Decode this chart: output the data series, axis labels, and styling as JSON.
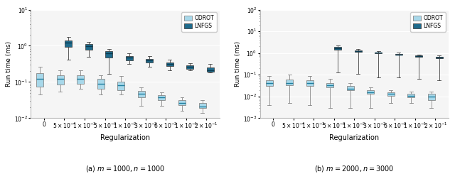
{
  "subplot_titles": [
    "(a) $m = 1000, n = 1000$",
    "(b) $m = 2000, n = 3000$"
  ],
  "xlabel": "Regularization",
  "ylabel": "Run time (ms)",
  "legend_labels": [
    "ODROT",
    "LNFGS"
  ],
  "color_qdrot": "#A8D8EA",
  "color_lbfgs": "#1E6B8C",
  "x_labels": [
    "$0$",
    "$5{\\times}10^{\\text{-}4}$",
    "$1{\\times}10^{\\text{-}3}$",
    "$5{\\times}10^{\\text{-}3}$",
    "$1{\\times}10^{\\text{-}2}$",
    "$3{\\times}10^{\\text{-}2}$",
    "$6{\\times}10^{\\text{-}2}$",
    "$1{\\times}10^{\\text{-}1}$",
    "$2{\\times}10^{\\text{-}1}$"
  ],
  "plot1": {
    "qdrot": {
      "whislo": [
        0.045,
        0.055,
        0.065,
        0.045,
        0.045,
        0.022,
        0.022,
        0.016,
        0.014
      ],
      "q1": [
        0.075,
        0.085,
        0.09,
        0.065,
        0.06,
        0.038,
        0.032,
        0.023,
        0.019
      ],
      "med": [
        0.12,
        0.12,
        0.12,
        0.09,
        0.08,
        0.047,
        0.037,
        0.026,
        0.021
      ],
      "q3": [
        0.175,
        0.155,
        0.155,
        0.12,
        0.1,
        0.058,
        0.043,
        0.032,
        0.026
      ],
      "whishi": [
        0.265,
        0.21,
        0.21,
        0.155,
        0.145,
        0.072,
        0.052,
        0.037,
        0.031
      ],
      "fliers_lo": [
        0.036,
        0.042,
        null,
        null,
        null,
        null,
        null,
        null,
        null
      ],
      "fliers_hi": [
        0.38,
        0.27,
        0.27,
        0.195,
        0.195,
        null,
        null,
        null,
        null
      ]
    },
    "lbfgs": {
      "whislo": [
        null,
        0.42,
        0.5,
        0.17,
        0.32,
        0.26,
        0.21,
        0.21,
        0.18
      ],
      "q1": [
        null,
        0.92,
        0.77,
        0.47,
        0.4,
        0.34,
        0.28,
        0.23,
        0.19
      ],
      "med": [
        null,
        1.2,
        0.96,
        0.62,
        0.47,
        0.39,
        0.31,
        0.26,
        0.21
      ],
      "q3": [
        null,
        1.38,
        1.1,
        0.72,
        0.53,
        0.43,
        0.34,
        0.29,
        0.25
      ],
      "whishi": [
        null,
        1.75,
        1.28,
        0.82,
        0.62,
        0.52,
        0.41,
        0.33,
        0.31
      ],
      "fliers_lo": [
        null,
        null,
        null,
        null,
        null,
        null,
        null,
        null,
        null
      ],
      "fliers_hi": [
        null,
        2.4,
        1.55,
        null,
        null,
        null,
        null,
        null,
        null
      ]
    },
    "ylim": [
      0.01,
      10
    ],
    "yticks": [
      0.01,
      0.1,
      1.0,
      10
    ],
    "ytick_labels": [
      "$10^{-2}$",
      "$10^{-1}$",
      "$10^{0}$",
      "$10^{1}$"
    ]
  },
  "plot2": {
    "qdrot": {
      "whislo": [
        0.004,
        0.005,
        0.004,
        0.003,
        0.003,
        0.003,
        0.005,
        0.005,
        0.003
      ],
      "q1": [
        0.03,
        0.032,
        0.03,
        0.026,
        0.019,
        0.013,
        0.011,
        0.009,
        0.007
      ],
      "med": [
        0.042,
        0.042,
        0.042,
        0.032,
        0.023,
        0.016,
        0.013,
        0.011,
        0.01
      ],
      "q3": [
        0.058,
        0.062,
        0.058,
        0.042,
        0.03,
        0.019,
        0.015,
        0.013,
        0.013
      ],
      "whishi": [
        0.085,
        0.105,
        0.085,
        0.063,
        0.042,
        0.026,
        0.019,
        0.017,
        0.017
      ],
      "fliers_lo": [
        0.0025,
        0.0022,
        0.003,
        null,
        null,
        null,
        null,
        null,
        null
      ],
      "fliers_hi": [
        null,
        0.145,
        null,
        null,
        null,
        null,
        0.021,
        0.023,
        null
      ]
    },
    "lbfgs": {
      "whislo": [
        null,
        null,
        null,
        0.13,
        0.11,
        0.075,
        0.075,
        0.065,
        0.055
      ],
      "q1": [
        null,
        2.6,
        2.1,
        1.45,
        1.15,
        0.97,
        0.82,
        0.67,
        0.57
      ],
      "med": [
        null,
        3.1,
        2.55,
        1.65,
        1.25,
        1.02,
        0.87,
        0.72,
        0.62
      ],
      "q3": [
        null,
        3.6,
        2.85,
        1.95,
        1.35,
        1.07,
        0.92,
        0.77,
        0.67
      ],
      "whishi": [
        null,
        4.1,
        3.25,
        2.25,
        1.55,
        1.22,
        1.02,
        0.87,
        0.77
      ],
      "fliers_lo": [
        null,
        null,
        null,
        0.085,
        null,
        0.042,
        null,
        null,
        null
      ],
      "fliers_hi": [
        null,
        null,
        null,
        null,
        null,
        null,
        null,
        0.31,
        null
      ]
    },
    "ylim": [
      0.001,
      100
    ],
    "yticks": [
      0.001,
      0.01,
      0.1,
      1.0,
      10,
      100
    ],
    "ytick_labels": [
      "$10^{-3}$",
      "$10^{-2}$",
      "$10^{-1}$",
      "$10^{0}$",
      "$10^{1}$",
      "$10^{2}$"
    ]
  },
  "bg_color": "#f5f5f5",
  "grid_color": "#ffffff",
  "box_edge_color": "#888888",
  "median_color_qdrot": "#2080a0",
  "median_color_lbfgs": "#0a3a50"
}
